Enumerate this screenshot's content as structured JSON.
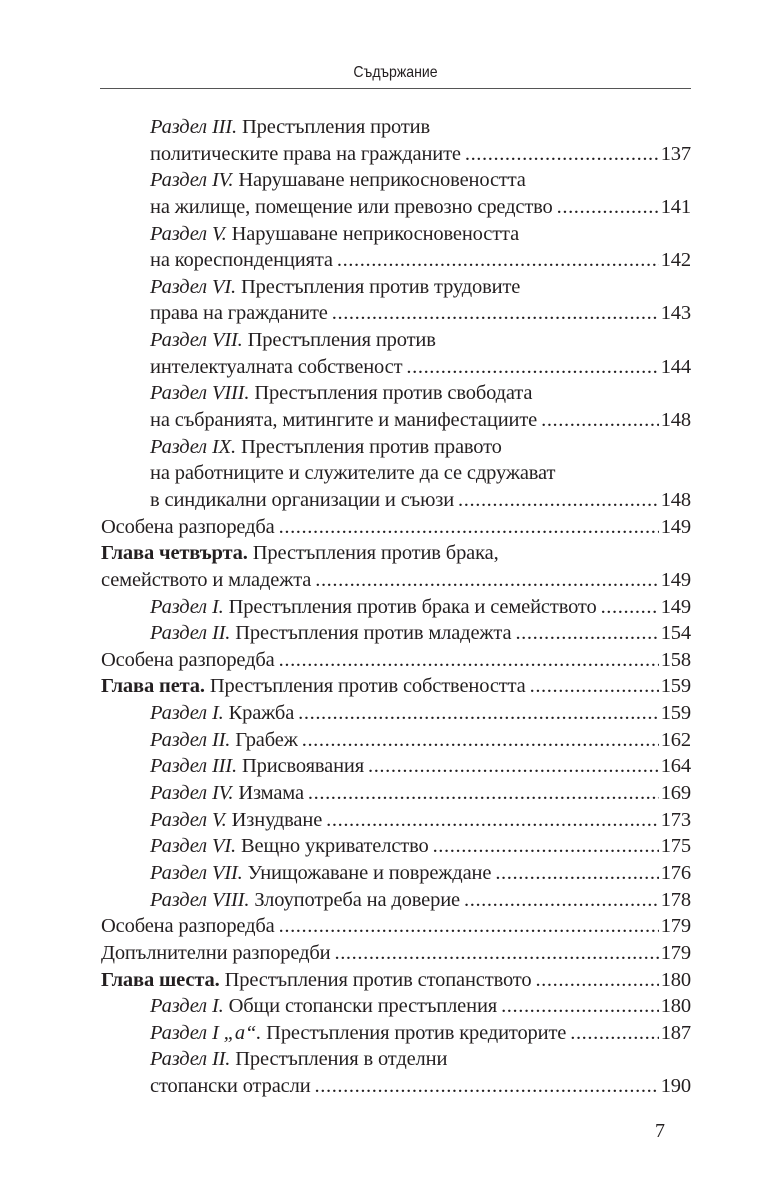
{
  "header": "Съдържание",
  "folio": "7",
  "entries": [
    {
      "indent": true,
      "italic": "Раздел III.",
      "lines": [
        "Престъпления против",
        "политическите права на гражданите"
      ],
      "page": "137"
    },
    {
      "indent": true,
      "italic": "Раздел IV.",
      "lines": [
        "Нарушаване неприкосновеността",
        "на жилище, помещение или превозно средство"
      ],
      "page": "141"
    },
    {
      "indent": true,
      "italic": "Раздел V.",
      "lines": [
        "Нарушаване неприкосновеността",
        "на кореспонденцията"
      ],
      "page": "142"
    },
    {
      "indent": true,
      "italic": "Раздел VI.",
      "lines": [
        "Престъпления против трудовите",
        "права на гражданите"
      ],
      "page": "143"
    },
    {
      "indent": true,
      "italic": "Раздел VII.",
      "lines": [
        "Престъпления против",
        "интелектуалната собственост"
      ],
      "page": "144"
    },
    {
      "indent": true,
      "italic": "Раздел VIII.",
      "lines": [
        "Престъпления против свободата",
        "на събранията, митингите и манифестациите"
      ],
      "page": "148"
    },
    {
      "indent": true,
      "italic": "Раздел IX.",
      "lines": [
        "Престъпления против правото",
        "на работниците и служителите да се сдружават",
        "в синдикални организации и съюзи"
      ],
      "page": "148"
    },
    {
      "indent": false,
      "lines": [
        "Особена разпоредба"
      ],
      "page": "149"
    },
    {
      "indent": false,
      "bold": "Глава четвърта.",
      "lines": [
        "Престъпления против брака,",
        "семейството и младежта"
      ],
      "page": "149"
    },
    {
      "indent": true,
      "italic": "Раздел I.",
      "lines": [
        "Престъпления против брака и семейството"
      ],
      "page": "149"
    },
    {
      "indent": true,
      "italic": "Раздел II.",
      "lines": [
        "Престъпления против младежта"
      ],
      "page": "154"
    },
    {
      "indent": false,
      "lines": [
        "Особена разпоредба"
      ],
      "page": "158"
    },
    {
      "indent": false,
      "bold": "Глава пета.",
      "lines": [
        "Престъпления против собствеността"
      ],
      "page": "159"
    },
    {
      "indent": true,
      "italic": "Раздел I.",
      "lines": [
        "Кражба"
      ],
      "page": "159"
    },
    {
      "indent": true,
      "italic": "Раздел II.",
      "lines": [
        "Грабеж"
      ],
      "page": "162"
    },
    {
      "indent": true,
      "italic": "Раздел III.",
      "lines": [
        "Присвоявания"
      ],
      "page": "164"
    },
    {
      "indent": true,
      "italic": "Раздел IV.",
      "lines": [
        "Измама"
      ],
      "page": "169"
    },
    {
      "indent": true,
      "italic": "Раздел V.",
      "lines": [
        "Изнудване"
      ],
      "page": "173"
    },
    {
      "indent": true,
      "italic": "Раздел VI.",
      "lines": [
        "Вещно укривателство"
      ],
      "page": "175"
    },
    {
      "indent": true,
      "italic": "Раздел VII.",
      "lines": [
        "Унищожаване и повреждане"
      ],
      "page": "176"
    },
    {
      "indent": true,
      "italic": "Раздел VIII.",
      "lines": [
        "Злоупотреба на доверие"
      ],
      "page": "178"
    },
    {
      "indent": false,
      "lines": [
        "Особена разпоредба"
      ],
      "page": "179"
    },
    {
      "indent": false,
      "lines": [
        "Допълнителни разпоредби"
      ],
      "page": "179"
    },
    {
      "indent": false,
      "bold": "Глава шеста.",
      "lines": [
        "Престъпления против стопанството"
      ],
      "page": "180"
    },
    {
      "indent": true,
      "italic": "Раздел I.",
      "lines": [
        "Общи стопански престъпления"
      ],
      "page": "180"
    },
    {
      "indent": true,
      "italic": "Раздел I „а“.",
      "lines": [
        "Престъпления против кредиторите"
      ],
      "page": "187"
    },
    {
      "indent": true,
      "italic": "Раздел II.",
      "lines": [
        "Престъпления в отделни",
        "стопански отрасли"
      ],
      "page": "190"
    }
  ]
}
